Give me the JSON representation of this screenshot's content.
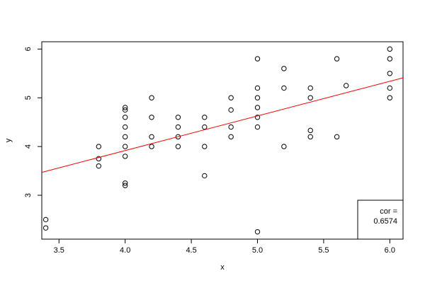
{
  "chart_data": {
    "type": "scatter",
    "title": "",
    "xlabel": "x",
    "ylabel": "y",
    "xlim": [
      3.37,
      6.1
    ],
    "ylim": [
      2.1,
      6.15
    ],
    "xticks": [
      3.5,
      4.0,
      4.5,
      5.0,
      5.5,
      6.0
    ],
    "xtick_labels": [
      "3.5",
      "4.0",
      "4.5",
      "5.0",
      "5.5",
      "6.0"
    ],
    "yticks": [
      3,
      4,
      5,
      6
    ],
    "ytick_labels": [
      "3",
      "4",
      "5",
      "6"
    ],
    "grid": false,
    "point_color": "#000000",
    "fit_line": {
      "color": "#ff0000",
      "x": [
        3.37,
        6.1
      ],
      "y": [
        3.47,
        5.41
      ]
    },
    "legend": {
      "placement": "bottom-right",
      "label": "cor =",
      "value": "0.6574"
    },
    "points": [
      [
        3.4,
        2.5
      ],
      [
        3.4,
        2.33
      ],
      [
        3.8,
        4.0
      ],
      [
        3.8,
        3.75
      ],
      [
        3.8,
        3.6
      ],
      [
        4.0,
        4.8
      ],
      [
        4.0,
        4.75
      ],
      [
        4.0,
        4.6
      ],
      [
        4.0,
        4.4
      ],
      [
        4.0,
        4.2
      ],
      [
        4.0,
        4.0
      ],
      [
        4.0,
        3.8
      ],
      [
        4.0,
        3.25
      ],
      [
        4.0,
        3.2
      ],
      [
        4.2,
        5.0
      ],
      [
        4.2,
        4.6
      ],
      [
        4.2,
        4.2
      ],
      [
        4.2,
        4.0
      ],
      [
        4.4,
        4.6
      ],
      [
        4.4,
        4.4
      ],
      [
        4.4,
        4.2
      ],
      [
        4.4,
        4.0
      ],
      [
        4.6,
        4.6
      ],
      [
        4.6,
        4.4
      ],
      [
        4.6,
        4.0
      ],
      [
        4.6,
        3.4
      ],
      [
        4.8,
        5.0
      ],
      [
        4.8,
        4.75
      ],
      [
        4.8,
        4.4
      ],
      [
        4.8,
        4.2
      ],
      [
        5.0,
        5.8
      ],
      [
        5.0,
        5.2
      ],
      [
        5.0,
        5.0
      ],
      [
        5.0,
        4.8
      ],
      [
        5.0,
        4.6
      ],
      [
        5.0,
        4.4
      ],
      [
        5.0,
        2.25
      ],
      [
        5.2,
        5.6
      ],
      [
        5.2,
        5.2
      ],
      [
        5.2,
        4.0
      ],
      [
        5.4,
        5.2
      ],
      [
        5.4,
        5.0
      ],
      [
        5.4,
        4.33
      ],
      [
        5.4,
        4.2
      ],
      [
        5.6,
        5.8
      ],
      [
        5.6,
        4.2
      ],
      [
        5.67,
        5.25
      ],
      [
        6.0,
        6.0
      ],
      [
        6.0,
        5.8
      ],
      [
        6.0,
        5.5
      ],
      [
        6.0,
        5.2
      ],
      [
        6.0,
        5.0
      ]
    ]
  }
}
